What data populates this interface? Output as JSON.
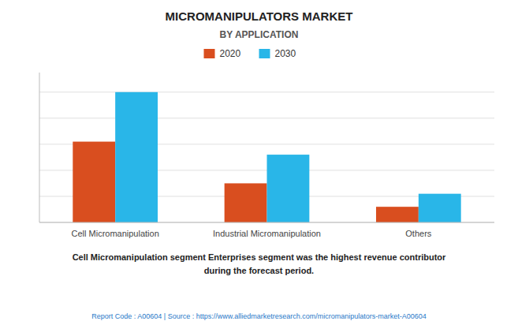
{
  "chart_data": {
    "type": "bar",
    "title": "MICROMANIPULATORS MARKET",
    "subtitle": "BY APPLICATION",
    "categories": [
      "Cell Micromanipulation",
      "Industrial Micromanipulation",
      "Others"
    ],
    "series": [
      {
        "name": "2020",
        "color": "#D94E1F",
        "values": [
          62,
          30,
          12
        ]
      },
      {
        "name": "2030",
        "color": "#29B6E8",
        "values": [
          100,
          52,
          22
        ]
      }
    ],
    "ylim": [
      0,
      115
    ],
    "yticks": [
      0,
      20,
      40,
      60,
      80,
      100
    ],
    "grid": true,
    "legend": "top",
    "tick_labels": "x",
    "annotation": "Cell Micromanipulation segment Enterprises segment was the highest revenue contributor\nduring the forecast period.",
    "footer": "Report Code : A00604  |  Source : https://www.alliedmarketresearch.com/micromanipulators-market-A00604"
  }
}
